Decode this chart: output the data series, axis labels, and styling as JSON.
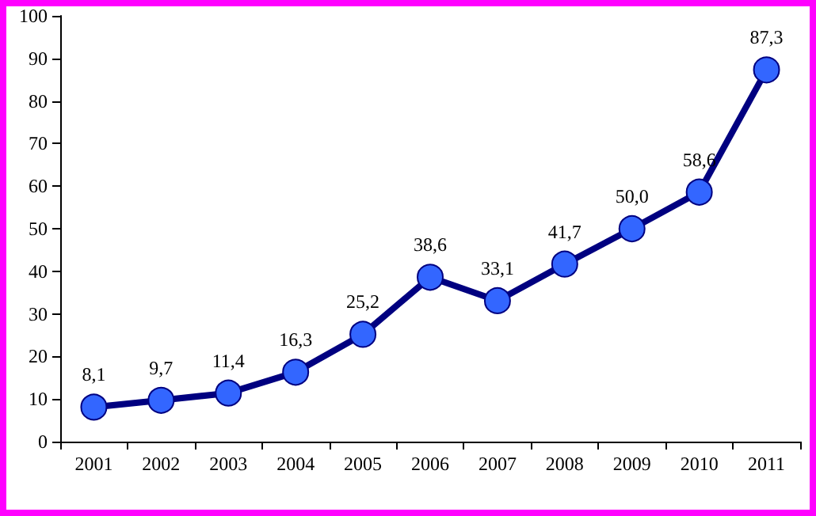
{
  "chart_data": {
    "type": "line",
    "categories": [
      "2001",
      "2002",
      "2003",
      "2004",
      "2005",
      "2006",
      "2007",
      "2008",
      "2009",
      "2010",
      "2011"
    ],
    "series": [
      {
        "color": "#000080",
        "values": [
          8.1,
          9.7,
          11.4,
          16.3,
          25.2,
          38.6,
          33.1,
          41.7,
          50.0,
          58.6,
          87.3
        ],
        "value_labels": [
          "8,1",
          "9,7",
          "11,4",
          "16,3",
          "25,2",
          "38,6",
          "33,1",
          "41,7",
          "50,0",
          "58,6",
          "87,3"
        ]
      }
    ],
    "marker": "circle",
    "line_style": "solid",
    "ylim": [
      0,
      100
    ],
    "yticks": [
      0,
      10,
      20,
      30,
      40,
      50,
      60,
      70,
      80,
      90,
      100
    ],
    "grid": false
  }
}
